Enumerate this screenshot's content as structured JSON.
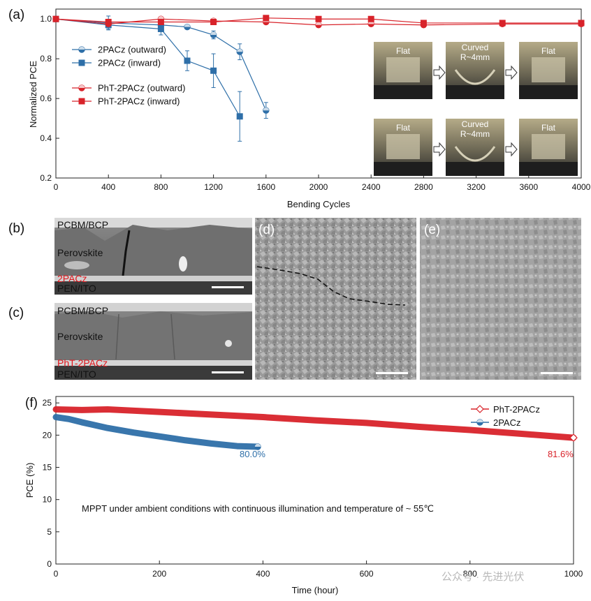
{
  "panels": {
    "a": "(a)",
    "b": "(b)",
    "c": "(c)",
    "d": "(d)",
    "e": "(e)",
    "f": "(f)"
  },
  "chart_data": [
    {
      "id": "a",
      "type": "line",
      "title": "",
      "xlabel": "Bending Cycles",
      "ylabel": "Normalized PCE",
      "xlim": [
        0,
        4000
      ],
      "ylim": [
        0.2,
        1.05
      ],
      "xticks": [
        0,
        400,
        800,
        1200,
        1600,
        2000,
        2400,
        2800,
        3200,
        3600,
        4000
      ],
      "yticks": [
        0.2,
        0.4,
        0.6,
        0.8,
        1.0
      ],
      "ytick_labels": [
        "0.2",
        "0.4",
        "0.6",
        "0.8",
        "1.0"
      ],
      "legend": "top-left",
      "series": [
        {
          "name": "2PACz (outward)",
          "color": "#2e6fa8",
          "marker": "circle",
          "x": [
            0,
            400,
            800,
            1000,
            1200,
            1400,
            1600
          ],
          "y": [
            1.0,
            0.98,
            0.97,
            0.96,
            0.92,
            0.835,
            0.54
          ],
          "err": [
            0,
            0.035,
            0.03,
            0,
            0.02,
            0.04,
            0.04
          ]
        },
        {
          "name": "2PACz (inward)",
          "color": "#2e6fa8",
          "marker": "square",
          "x": [
            0,
            400,
            800,
            1000,
            1200,
            1400
          ],
          "y": [
            1.0,
            0.97,
            0.95,
            0.79,
            0.74,
            0.51
          ],
          "err": [
            0,
            0.02,
            0.03,
            0.05,
            0.085,
            0.125
          ]
        },
        {
          "name": "PhT-2PACz (outward)",
          "color": "#d8232a",
          "marker": "circle",
          "x": [
            0,
            400,
            800,
            1200,
            1600,
            2000,
            2400,
            2800,
            3400,
            4000
          ],
          "y": [
            1.0,
            0.975,
            1.0,
            0.99,
            0.985,
            0.97,
            0.975,
            0.97,
            0.975,
            0.975
          ],
          "err": [
            0,
            0.01,
            0.01,
            0.01,
            0.01,
            0.005,
            0.005,
            0.005,
            0.005,
            0.005
          ]
        },
        {
          "name": "PhT-2PACz (inward)",
          "color": "#d8232a",
          "marker": "square",
          "x": [
            0,
            400,
            800,
            1200,
            1600,
            2000,
            2400,
            2800,
            3400,
            4000
          ],
          "y": [
            1.0,
            0.985,
            0.985,
            0.985,
            1.005,
            1.0,
            1.0,
            0.98,
            0.98,
            0.98
          ],
          "err": [
            0,
            0.01,
            0.01,
            0.01,
            0.01,
            0.005,
            0.005,
            0.005,
            0.005,
            0.005
          ]
        }
      ]
    },
    {
      "id": "f",
      "type": "line",
      "title": "",
      "xlabel": "Time (hour)",
      "ylabel": "PCE (%)",
      "xlim": [
        0,
        1000
      ],
      "ylim": [
        0,
        26
      ],
      "xticks": [
        0,
        200,
        400,
        600,
        800,
        1000
      ],
      "yticks": [
        0,
        5,
        10,
        15,
        20,
        25
      ],
      "legend": "top-right",
      "series": [
        {
          "name": "PhT-2PACz",
          "color": "#d8232a",
          "marker": "diamond",
          "x": [
            0,
            50,
            100,
            150,
            200,
            300,
            400,
            500,
            600,
            700,
            800,
            900,
            1000
          ],
          "y": [
            24.0,
            23.9,
            24.0,
            23.8,
            23.6,
            23.2,
            22.8,
            22.3,
            21.9,
            21.3,
            20.8,
            20.2,
            19.6
          ]
        },
        {
          "name": "2PACz",
          "color": "#2e6fa8",
          "marker": "circle",
          "x": [
            0,
            25,
            50,
            100,
            150,
            200,
            250,
            300,
            350,
            390
          ],
          "y": [
            22.8,
            22.5,
            22.0,
            21.1,
            20.4,
            19.8,
            19.2,
            18.7,
            18.3,
            18.2
          ]
        }
      ],
      "annotations": [
        {
          "text": "80.0%",
          "x": 355,
          "y": 16.6,
          "color": "#2e6fa8"
        },
        {
          "text": "81.6%",
          "x": 950,
          "y": 16.6,
          "color": "#d8232a"
        },
        {
          "text": "MPPT under ambient conditions with continuous illumination and temperature of ~ 55℃",
          "x": 50,
          "y": 8.1,
          "color": "#111111"
        }
      ]
    }
  ],
  "photos": {
    "flat": "Flat",
    "curved": "Curved",
    "radius": "R~4mm"
  },
  "sem": {
    "b_layers": [
      "PCBM/BCP",
      "Perovskite",
      "2PACz",
      "PEN/ITO"
    ],
    "c_layers": [
      "PCBM/BCP",
      "Perovskite",
      "PhT-2PACz",
      "PEN/ITO"
    ]
  },
  "watermark": "公众号 · 先进光伏"
}
